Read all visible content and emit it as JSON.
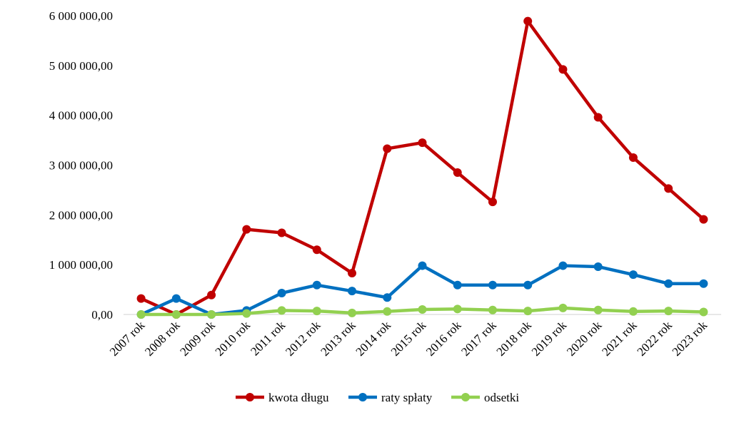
{
  "chart_data": {
    "type": "line",
    "title": "",
    "xlabel": "",
    "ylabel": "",
    "categories": [
      "2007 rok",
      "2008 rok",
      "2009 rok",
      "2010 rok",
      "2011 rok",
      "2012 rok",
      "2013 rok",
      "2014 rok",
      "2015 rok",
      "2016 rok",
      "2017 rok",
      "2018 rok",
      "2019 rok",
      "2020 rok",
      "2021 rok",
      "2022 rok",
      "2023 rok"
    ],
    "ylim": [
      0,
      6000000
    ],
    "y_ticks": [
      0,
      1000000,
      2000000,
      3000000,
      4000000,
      5000000,
      6000000
    ],
    "y_tick_labels": [
      "0,00",
      "1 000 000,00",
      "2 000 000,00",
      "3 000 000,00",
      "4 000 000,00",
      "5 000 000,00",
      "6 000 000,00"
    ],
    "grid": false,
    "legend_position": "bottom",
    "series": [
      {
        "name": "kwota długu",
        "color": "#C00000",
        "values": [
          320000,
          0,
          390000,
          1710000,
          1640000,
          1300000,
          830000,
          3330000,
          3450000,
          2850000,
          2260000,
          5890000,
          4920000,
          3960000,
          3150000,
          2530000,
          1910000
        ]
      },
      {
        "name": "raty spłaty",
        "color": "#0070C0",
        "values": [
          0,
          320000,
          0,
          80000,
          430000,
          590000,
          470000,
          340000,
          980000,
          590000,
          590000,
          590000,
          980000,
          960000,
          800000,
          620000,
          620000
        ]
      },
      {
        "name": "odsetki",
        "color": "#92D050",
        "values": [
          0,
          0,
          0,
          20000,
          80000,
          70000,
          30000,
          60000,
          100000,
          110000,
          90000,
          70000,
          130000,
          90000,
          60000,
          70000,
          50000
        ]
      }
    ]
  }
}
